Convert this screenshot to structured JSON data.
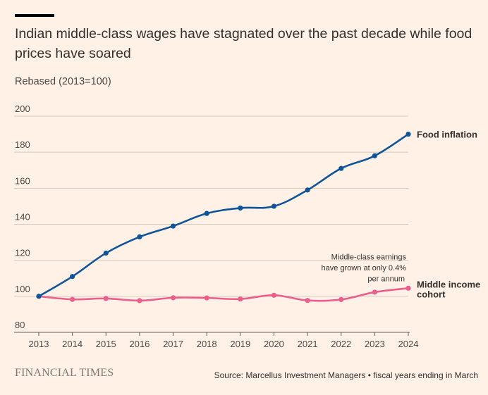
{
  "header": {
    "title": "Indian middle-class wages have stagnated over the past decade while food prices have soared",
    "subtitle": "Rebased (2013=100)"
  },
  "footer": {
    "brand": "FINANCIAL TIMES",
    "source": "Source: Marcellus Investment Managers • fiscal years ending in March"
  },
  "colors": {
    "background": "#fff1e5",
    "food": "#0f5499",
    "wages": "#eb5e8d",
    "grid": "#d4c7bb"
  },
  "chart_data": {
    "type": "line",
    "title": "Indian middle-class wages have stagnated over the past decade while food prices have soared",
    "subtitle": "Rebased (2013=100)",
    "xlabel": "",
    "ylabel": "",
    "ylim": [
      80,
      200
    ],
    "yticks": [
      80,
      100,
      120,
      140,
      160,
      180,
      200
    ],
    "grid": true,
    "categories": [
      "2013",
      "2014",
      "2015",
      "2016",
      "2017",
      "2018",
      "2019",
      "2020",
      "2021",
      "2022",
      "2023",
      "2024"
    ],
    "series": [
      {
        "name": "Food inflation",
        "color": "#0f5499",
        "values": [
          100,
          111,
          124,
          133,
          139,
          146,
          149,
          150,
          159,
          171,
          178,
          190
        ]
      },
      {
        "name": "Middle income cohort",
        "label_lines": [
          "Middle income",
          "cohort"
        ],
        "color": "#eb5e8d",
        "values": [
          100,
          98.3,
          98.8,
          97.6,
          99.2,
          99.1,
          98.5,
          100.6,
          97.7,
          98.2,
          102.3,
          104.5
        ]
      }
    ],
    "annotation": {
      "lines": [
        "Middle-class earnings",
        "have grown at only 0.4%",
        "per annum"
      ],
      "near_category": "2024"
    }
  }
}
